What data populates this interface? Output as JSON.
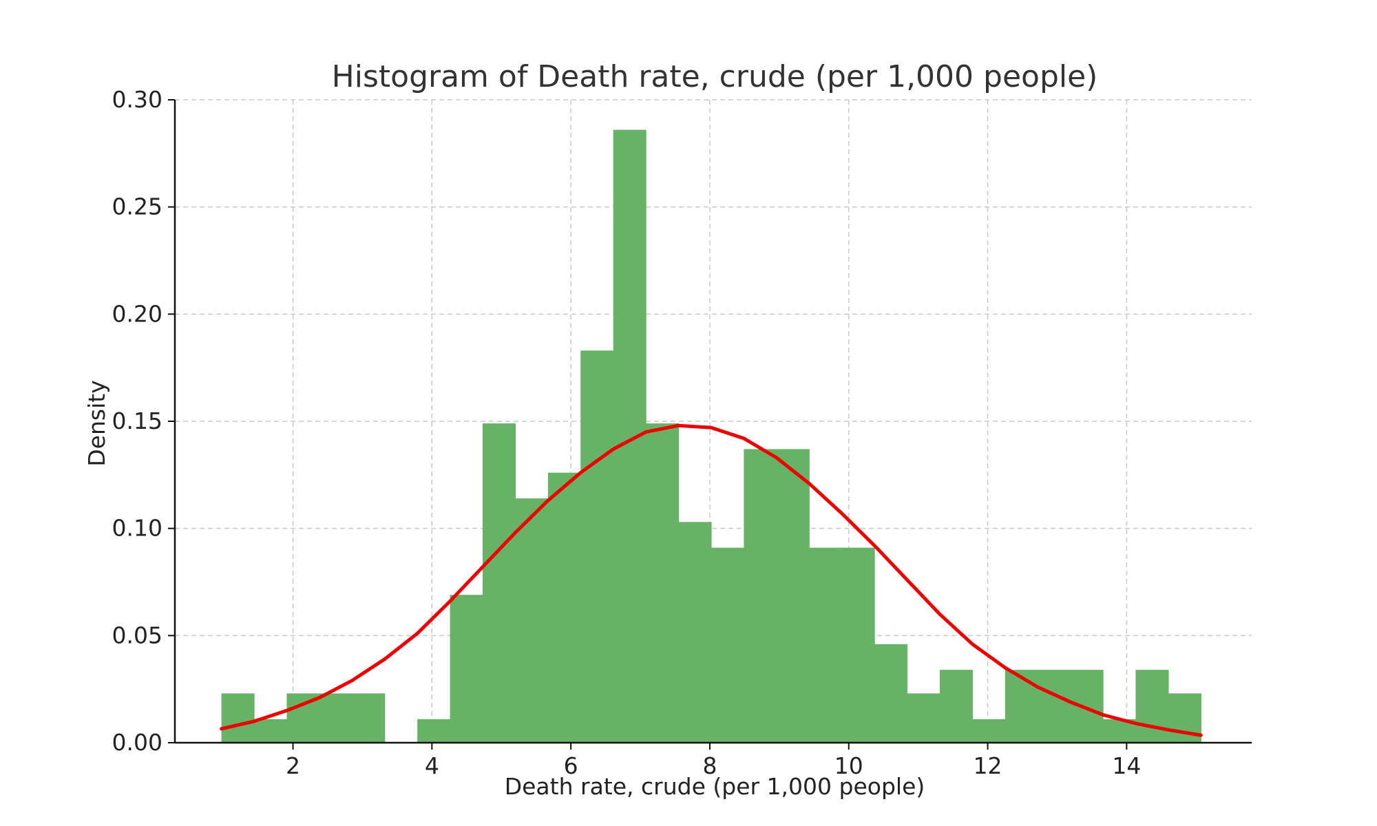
{
  "chart_data": {
    "type": "bar",
    "title": "Histogram of Death rate, crude (per 1,000 people)",
    "xlabel": "Death rate, crude (per 1,000 people)",
    "ylabel": "Density",
    "xlim": [
      0.3,
      15.8
    ],
    "ylim": [
      0,
      0.3
    ],
    "x_ticks": [
      2,
      4,
      6,
      8,
      10,
      12,
      14
    ],
    "x_tick_labels": [
      "2",
      "4",
      "6",
      "8",
      "10",
      "12",
      "14"
    ],
    "y_ticks": [
      0,
      0.05,
      0.1,
      0.15,
      0.2,
      0.25,
      0.3
    ],
    "y_tick_labels": [
      "0.00",
      "0.05",
      "0.10",
      "0.15",
      "0.20",
      "0.25",
      "0.30"
    ],
    "grid": true,
    "legend": "none",
    "bar_color": "#67b266",
    "curve_color": "#ee0000",
    "bins": [
      {
        "x0": 0.97,
        "x1": 1.44,
        "density": 0.023
      },
      {
        "x0": 1.44,
        "x1": 1.91,
        "density": 0.011
      },
      {
        "x0": 1.91,
        "x1": 2.38,
        "density": 0.023
      },
      {
        "x0": 2.38,
        "x1": 2.85,
        "density": 0.023
      },
      {
        "x0": 2.85,
        "x1": 3.32,
        "density": 0.023
      },
      {
        "x0": 3.32,
        "x1": 3.79,
        "density": 0.0
      },
      {
        "x0": 3.79,
        "x1": 4.26,
        "density": 0.011
      },
      {
        "x0": 4.26,
        "x1": 4.73,
        "density": 0.069
      },
      {
        "x0": 4.73,
        "x1": 5.2,
        "density": 0.149
      },
      {
        "x0": 5.2,
        "x1": 5.67,
        "density": 0.114
      },
      {
        "x0": 5.67,
        "x1": 6.14,
        "density": 0.126
      },
      {
        "x0": 6.14,
        "x1": 6.61,
        "density": 0.183
      },
      {
        "x0": 6.61,
        "x1": 7.08,
        "density": 0.286
      },
      {
        "x0": 7.08,
        "x1": 7.55,
        "density": 0.149
      },
      {
        "x0": 7.55,
        "x1": 8.02,
        "density": 0.103
      },
      {
        "x0": 8.02,
        "x1": 8.49,
        "density": 0.091
      },
      {
        "x0": 8.49,
        "x1": 8.96,
        "density": 0.137
      },
      {
        "x0": 8.96,
        "x1": 9.43,
        "density": 0.137
      },
      {
        "x0": 9.43,
        "x1": 9.9,
        "density": 0.091
      },
      {
        "x0": 9.9,
        "x1": 10.37,
        "density": 0.091
      },
      {
        "x0": 10.37,
        "x1": 10.84,
        "density": 0.046
      },
      {
        "x0": 10.84,
        "x1": 11.31,
        "density": 0.023
      },
      {
        "x0": 11.31,
        "x1": 11.78,
        "density": 0.034
      },
      {
        "x0": 11.78,
        "x1": 12.25,
        "density": 0.011
      },
      {
        "x0": 12.25,
        "x1": 12.72,
        "density": 0.034
      },
      {
        "x0": 12.72,
        "x1": 13.19,
        "density": 0.034
      },
      {
        "x0": 13.19,
        "x1": 13.66,
        "density": 0.034
      },
      {
        "x0": 13.66,
        "x1": 14.13,
        "density": 0.011
      },
      {
        "x0": 14.13,
        "x1": 14.6,
        "density": 0.034
      },
      {
        "x0": 14.6,
        "x1": 15.07,
        "density": 0.023
      }
    ],
    "curve": {
      "x": [
        0.97,
        1.44,
        1.91,
        2.38,
        2.85,
        3.32,
        3.79,
        4.26,
        4.73,
        5.2,
        5.67,
        6.14,
        6.61,
        7.08,
        7.55,
        8.02,
        8.49,
        8.96,
        9.43,
        9.9,
        10.37,
        10.84,
        11.31,
        11.78,
        12.25,
        12.72,
        13.19,
        13.66,
        14.13,
        14.6,
        15.07
      ],
      "y": [
        0.0065,
        0.01,
        0.015,
        0.021,
        0.029,
        0.039,
        0.051,
        0.066,
        0.082,
        0.098,
        0.113,
        0.126,
        0.137,
        0.145,
        0.148,
        0.147,
        0.142,
        0.133,
        0.121,
        0.107,
        0.092,
        0.076,
        0.06,
        0.046,
        0.035,
        0.026,
        0.019,
        0.013,
        0.009,
        0.006,
        0.0035
      ]
    }
  }
}
